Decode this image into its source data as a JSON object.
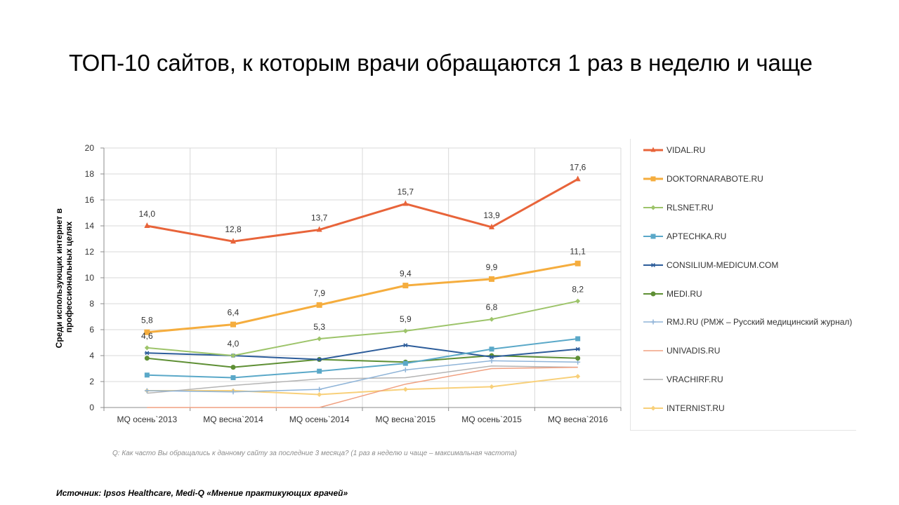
{
  "title": "ТОП-10 сайтов, к которым врачи обращаются 1 раз в неделю и чаще",
  "question": "Q: Как часто Вы обращались к данному сайту за последние 3 месяца? (1 раз в неделю и чаще – максимальная частота)",
  "source": "Источник: Ipsos Healthcare, Medi-Q «Мнение практикующих врачей»",
  "chart_data": {
    "type": "line",
    "title": "",
    "xlabel": "",
    "ylabel": "Среди использующих интернет в профессиональных целях",
    "ylim": [
      0,
      20
    ],
    "yticks": [
      0,
      2,
      4,
      6,
      8,
      10,
      12,
      14,
      16,
      18,
      20
    ],
    "ytick_labels": [
      "0",
      "2",
      "4",
      "6",
      "8",
      "10",
      "12",
      "14",
      "16",
      "18",
      "20"
    ],
    "grid": true,
    "legend": "right",
    "categories": [
      "MQ осень`2013",
      "MQ весна`2014",
      "MQ осень`2014",
      "MQ весна`2015",
      "MQ осень`2015",
      "MQ весна`2016"
    ],
    "series": [
      {
        "name": "VIDAL.RU",
        "color": "#e8643a",
        "marker": "triangle",
        "width": 3,
        "values": [
          14.0,
          12.8,
          13.7,
          15.7,
          13.9,
          17.6
        ],
        "labels": [
          "14,0",
          "12,8",
          "13,7",
          "15,7",
          "13,9",
          "17,6"
        ]
      },
      {
        "name": "DOKTORNARABOTE.RU",
        "color": "#f5ad3e",
        "marker": "square",
        "width": 3,
        "values": [
          5.8,
          6.4,
          7.9,
          9.4,
          9.9,
          11.1
        ],
        "labels": [
          "5,8",
          "6,4",
          "7,9",
          "9,4",
          "9,9",
          "11,1"
        ]
      },
      {
        "name": "RLSNET.RU",
        "color": "#9dc46a",
        "marker": "diamond",
        "width": 2,
        "values": [
          4.6,
          4.0,
          5.3,
          5.9,
          6.8,
          8.2
        ],
        "labels": [
          "4,6",
          "4,0",
          "5,3",
          "5,9",
          "6,8",
          "8,2"
        ]
      },
      {
        "name": "APTECHKA.RU",
        "color": "#5aa8c8",
        "marker": "square",
        "width": 2,
        "values": [
          2.5,
          2.3,
          2.8,
          3.4,
          4.5,
          5.3
        ]
      },
      {
        "name": "CONSILIUM-MEDICUM.COM",
        "color": "#2c5c9a",
        "marker": "star",
        "width": 2,
        "values": [
          4.2,
          4.0,
          3.7,
          4.8,
          3.9,
          4.5
        ]
      },
      {
        "name": "MEDI.RU",
        "color": "#5e8f34",
        "marker": "circle",
        "width": 2,
        "values": [
          3.8,
          3.1,
          3.7,
          3.5,
          4.0,
          3.8
        ]
      },
      {
        "name": "RMJ.RU (РМЖ – Русский медицинский журнал)",
        "color": "#8fb4d8",
        "marker": "plus",
        "width": 1.5,
        "values": [
          1.3,
          1.2,
          1.4,
          2.9,
          3.6,
          3.5
        ]
      },
      {
        "name": "UNIVADIS.RU",
        "color": "#f0a080",
        "marker": "none",
        "width": 1.5,
        "values": [
          0.0,
          0.0,
          0.0,
          1.8,
          3.0,
          3.1
        ]
      },
      {
        "name": "VRACHIRF.RU",
        "color": "#b4b4b4",
        "marker": "none",
        "width": 1.5,
        "values": [
          1.1,
          1.7,
          2.2,
          2.3,
          3.2,
          3.1
        ]
      },
      {
        "name": "INTERNIST.RU",
        "color": "#f8d07a",
        "marker": "diamond",
        "width": 2,
        "values": [
          1.3,
          1.3,
          1.0,
          1.4,
          1.6,
          2.4
        ]
      }
    ]
  }
}
